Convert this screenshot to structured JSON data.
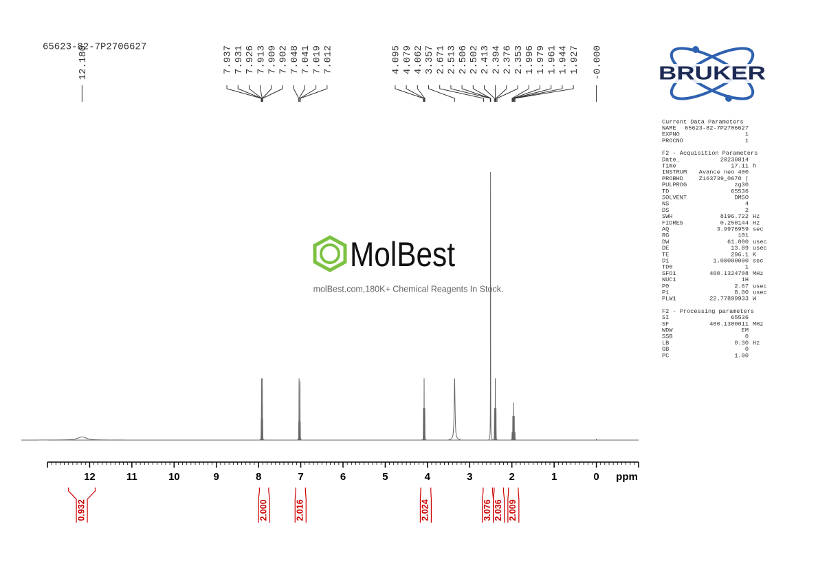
{
  "chart_data": {
    "type": "spectrum",
    "title": "65623-82-7P2706627",
    "x_label": "ppm",
    "xlim": [
      13,
      -1
    ],
    "xticks": [
      12,
      11,
      10,
      9,
      8,
      7,
      6,
      5,
      4,
      3,
      2,
      1,
      0
    ],
    "ylim": [
      0,
      100
    ],
    "color": "#666666",
    "x": [
      12.18,
      7.937,
      7.931,
      7.926,
      7.913,
      7.909,
      7.902,
      7.048,
      7.041,
      7.019,
      7.012,
      4.095,
      4.079,
      4.062,
      3.357,
      2.506,
      2.413,
      2.394,
      2.376,
      1.996,
      1.979,
      1.961,
      1.944,
      1.927,
      0
    ],
    "values": [
      1.2,
      8,
      23,
      6,
      6,
      23,
      8,
      7,
      23,
      22,
      7,
      12,
      23,
      12,
      23,
      100,
      12,
      23,
      12,
      3,
      9,
      14,
      9,
      3,
      0.5
    ],
    "widths": [
      0.12,
      0.002,
      0.002,
      0.002,
      0.002,
      0.002,
      0.002,
      0.002,
      0.002,
      0.002,
      0.002,
      0.002,
      0.002,
      0.002,
      0.012,
      0.002,
      0.002,
      0.002,
      0.002,
      0.002,
      0.002,
      0.002,
      0.002,
      0.002,
      0.002
    ],
    "peak_labels": [
      {
        "value": 12.18,
        "label": "12.180"
      },
      7.937,
      7.931,
      7.926,
      7.913,
      7.909,
      7.902,
      7.048,
      7.041,
      7.019,
      7.012,
      4.095,
      4.079,
      4.062,
      3.357,
      2.671,
      2.513,
      2.506,
      2.502,
      2.413,
      2.394,
      2.376,
      2.353,
      1.996,
      1.979,
      1.961,
      1.944,
      1.927,
      {
        "value": 0,
        "label": "-0.000"
      }
    ],
    "integrals": {
      "color": "#cc0000",
      "ranges": [
        [
          12.5,
          11.87
        ],
        [
          7.98,
          7.76
        ],
        [
          7.12,
          6.89
        ],
        [
          4.16,
          3.92
        ],
        [
          2.68,
          2.46
        ],
        [
          2.42,
          2.2
        ],
        [
          2.08,
          1.85
        ]
      ],
      "values": [
        0.932,
        2,
        2.016,
        2.024,
        3.076,
        2.036,
        2.009
      ],
      "value_labels": [
        "0.932",
        "2.000",
        "2.016",
        "2.024",
        "3.076",
        "2.036",
        "2.009"
      ]
    }
  },
  "watermark": {
    "name": "MolBest",
    "tagline": "molBest.com,180K+ Chemical Reagents In Stock."
  },
  "logo": "BRUKER",
  "parameters": {
    "sections": [
      {
        "title": "Current Data Parameters",
        "rows": [
          [
            "NAME",
            "65623-82-7P2706627"
          ],
          [
            "EXPNO",
            "1"
          ],
          [
            "PROCNO",
            "1"
          ]
        ]
      },
      {
        "title": "F2 - Acquisition Parameters",
        "rows": [
          [
            "Date_",
            "20230814"
          ],
          [
            "Time",
            "17.11",
            "h"
          ],
          [
            "INSTRUM",
            "Avance neo 400"
          ],
          [
            "PROBHD",
            "Z163739_0670 ("
          ],
          [
            "PULPROG",
            "zg30"
          ],
          [
            "TD",
            "65536"
          ],
          [
            "SOLVENT",
            "DMSO"
          ],
          [
            "NS",
            "4"
          ],
          [
            "DS",
            "2"
          ],
          [
            "SWH",
            "8196.722",
            "Hz"
          ],
          [
            "FIDRES",
            "0.250144",
            "Hz"
          ],
          [
            "AQ",
            "3.9976959",
            "sec"
          ],
          [
            "RG",
            "101"
          ],
          [
            "DW",
            "61.000",
            "usec"
          ],
          [
            "DE",
            "13.89",
            "usec"
          ],
          [
            "TE",
            "296.1",
            "K"
          ],
          [
            "D1",
            "1.00000000",
            "sec"
          ],
          [
            "TD0",
            "1"
          ],
          [
            "SFO1",
            "400.1324708",
            "MHz"
          ],
          [
            "NUC1",
            "1H"
          ],
          [
            "P0",
            "2.67",
            "usec"
          ],
          [
            "P1",
            "8.00",
            "usec"
          ],
          [
            "PLW1",
            "22.77899933",
            "W"
          ]
        ]
      },
      {
        "title": "F2 - Processing parameters",
        "rows": [
          [
            "SI",
            "65536"
          ],
          [
            "SF",
            "400.1300011",
            "MHz"
          ],
          [
            "WDW",
            "EM"
          ],
          [
            "SSB",
            "0"
          ],
          [
            "LB",
            "0.30",
            "Hz"
          ],
          [
            "GB",
            "0"
          ],
          [
            "PC",
            "1.00"
          ]
        ]
      }
    ]
  }
}
